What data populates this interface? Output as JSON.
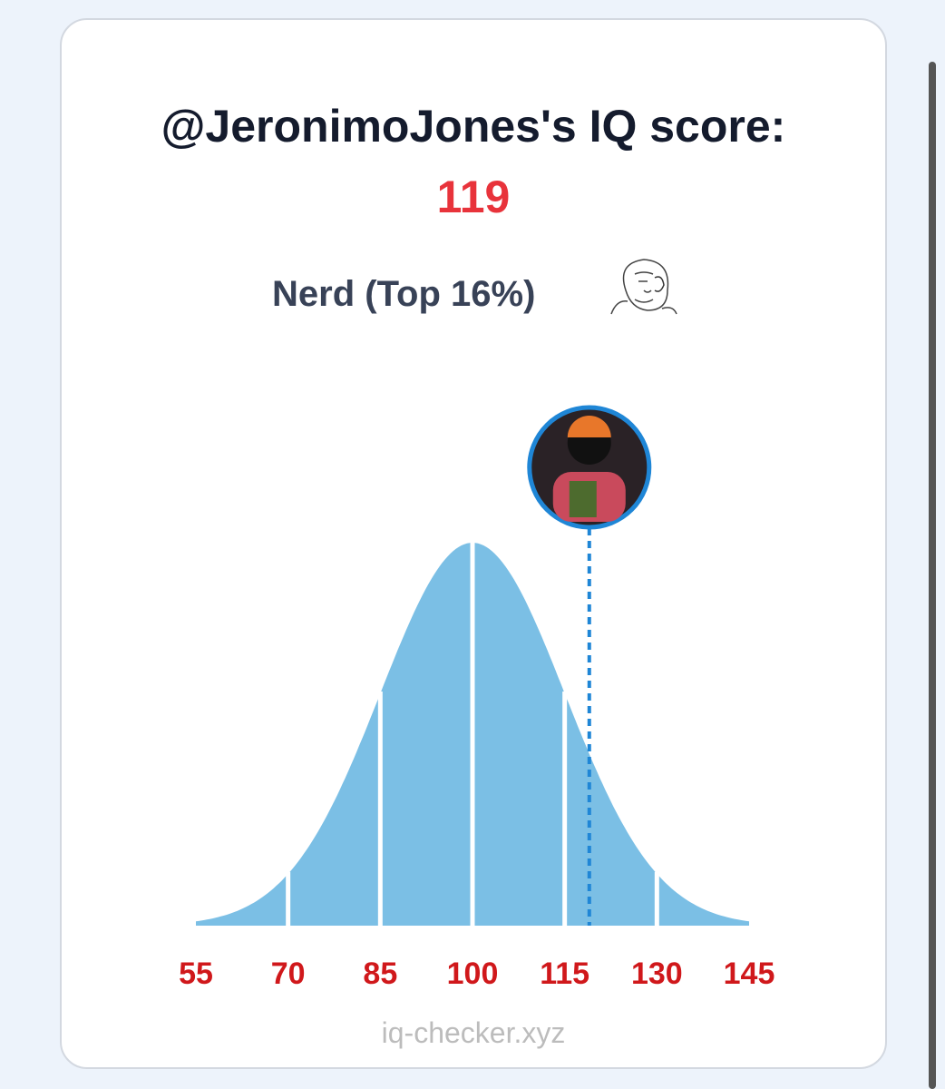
{
  "card": {
    "title": "@JeronimoJones's IQ score:",
    "subtitle": "Nerd (Top 16%)",
    "footer": "iq-checker.xyz"
  },
  "chart_data": {
    "type": "bell",
    "xlim": [
      55,
      145
    ],
    "xticks": [
      55,
      70,
      85,
      100,
      115,
      130,
      145
    ],
    "marker": 119,
    "color": "#7bbfe5",
    "marker_color": "#1f86d6",
    "tick_color": "#d0181b"
  }
}
